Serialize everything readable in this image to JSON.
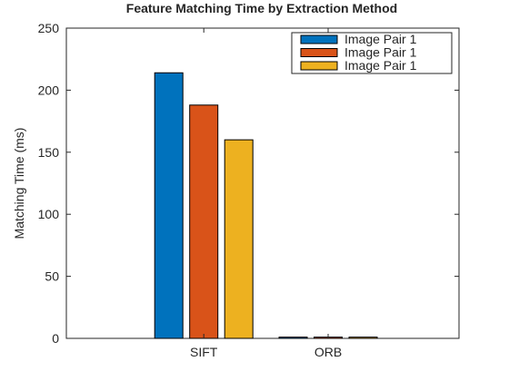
{
  "chart_data": {
    "type": "bar",
    "title": "Feature Matching Time by Extraction Method",
    "xlabel": "",
    "ylabel": "Matching Time (ms)",
    "categories": [
      "SIFT",
      "ORB"
    ],
    "series": [
      {
        "name": "Image Pair 1",
        "color": "#0072BD",
        "values": [
          214,
          1
        ]
      },
      {
        "name": "Image Pair 1",
        "color": "#D95319",
        "values": [
          188,
          1
        ]
      },
      {
        "name": "Image Pair 1",
        "color": "#EDB120",
        "values": [
          160,
          1
        ]
      }
    ],
    "ylim": [
      0,
      250
    ],
    "yticks": [
      0,
      50,
      100,
      150,
      200,
      250
    ],
    "grid": false,
    "legend_position": "top-right"
  }
}
